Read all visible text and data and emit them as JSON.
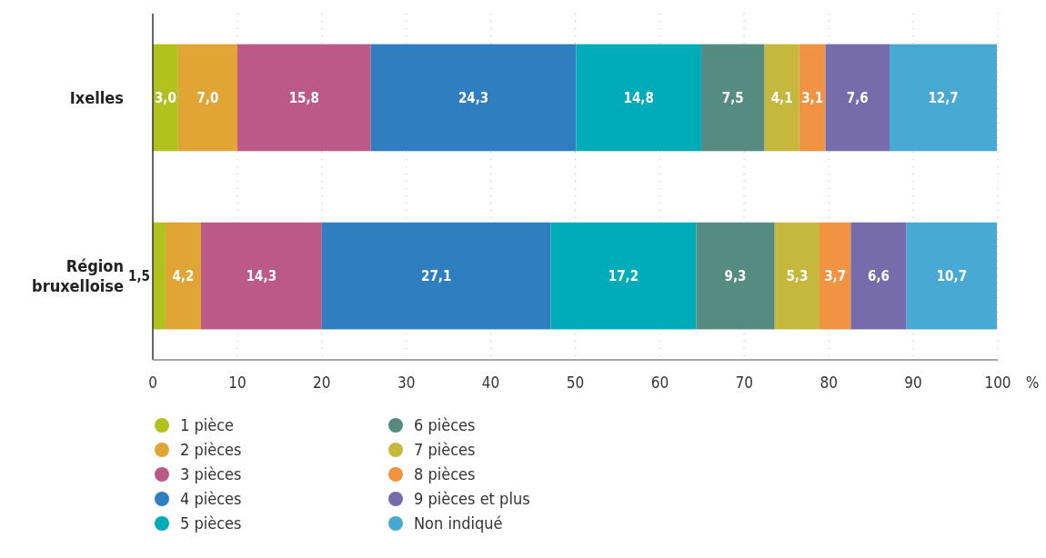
{
  "chart_data": {
    "type": "bar",
    "orientation": "horizontal",
    "stacked": true,
    "xlabel": "%",
    "categories": [
      "Ixelles",
      "Région bruxelloise"
    ],
    "xlim": [
      0,
      100
    ],
    "xticks": [
      0,
      10,
      20,
      30,
      40,
      50,
      60,
      70,
      80,
      90,
      100
    ],
    "grid": "x",
    "legend": "bottom left",
    "series": [
      {
        "name": "1 pièce",
        "color": "#b1c21e",
        "values": [
          3.0,
          1.5
        ],
        "value_labels": [
          "3,0",
          "1,5"
        ]
      },
      {
        "name": "2 pièces",
        "color": "#e0a534",
        "values": [
          7.0,
          4.2
        ],
        "value_labels": [
          "7,0",
          "4,2"
        ]
      },
      {
        "name": "3 pièces",
        "color": "#bc5a87",
        "values": [
          15.8,
          14.3
        ],
        "value_labels": [
          "15,8",
          "14,3"
        ]
      },
      {
        "name": "4 pièces",
        "color": "#2f7fc0",
        "values": [
          24.3,
          27.1
        ],
        "value_labels": [
          "24,3",
          "27,1"
        ]
      },
      {
        "name": "5 pièces",
        "color": "#00abba",
        "values": [
          14.8,
          17.2
        ],
        "value_labels": [
          "14,8",
          "17,2"
        ]
      },
      {
        "name": "6 pièces",
        "color": "#558b80",
        "values": [
          7.5,
          9.3
        ],
        "value_labels": [
          "7,5",
          "9,3"
        ]
      },
      {
        "name": "7 pièces",
        "color": "#c6b83c",
        "values": [
          4.1,
          5.3
        ],
        "value_labels": [
          "4,1",
          "5,3"
        ]
      },
      {
        "name": "8 pièces",
        "color": "#f09443",
        "values": [
          3.1,
          3.7
        ],
        "value_labels": [
          "3,1",
          "3,7"
        ]
      },
      {
        "name": "9 pièces et plus",
        "color": "#766bab",
        "values": [
          7.6,
          6.6
        ],
        "value_labels": [
          "7,6",
          "6,6"
        ]
      },
      {
        "name": "Non indiqué",
        "color": "#48aad3",
        "values": [
          12.7,
          10.7
        ],
        "value_labels": [
          "12,7",
          "10,7"
        ]
      }
    ]
  }
}
